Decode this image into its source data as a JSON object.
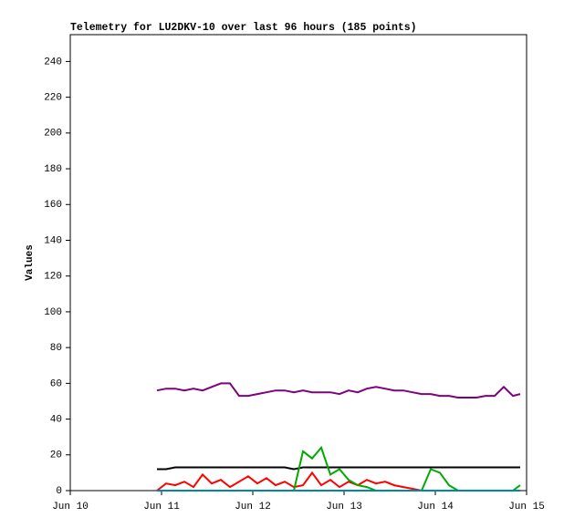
{
  "chart_data": {
    "type": "line",
    "title": "Telemetry for LU2DKV-10 over last 96 hours (185 points)",
    "y_label": "Values",
    "xlim": [
      10,
      15
    ],
    "xticks": [
      {
        "value": 10,
        "label": "Jun 10"
      },
      {
        "value": 11,
        "label": "Jun 11"
      },
      {
        "value": 12,
        "label": "Jun 12"
      },
      {
        "value": 13,
        "label": "Jun 13"
      },
      {
        "value": 14,
        "label": "Jun 14"
      },
      {
        "value": 15,
        "label": "Jun 15"
      }
    ],
    "ylim": [
      0,
      255
    ],
    "yticks": [
      0,
      20,
      40,
      60,
      80,
      100,
      120,
      140,
      160,
      180,
      200,
      220,
      240
    ],
    "x": [
      10.95,
      11.05,
      11.15,
      11.25,
      11.35,
      11.45,
      11.55,
      11.65,
      11.75,
      11.85,
      11.95,
      12.05,
      12.15,
      12.25,
      12.35,
      12.45,
      12.55,
      12.65,
      12.75,
      12.85,
      12.95,
      13.05,
      13.15,
      13.25,
      13.35,
      13.45,
      13.55,
      13.65,
      13.75,
      13.85,
      13.95,
      14.05,
      14.15,
      14.25,
      14.35,
      14.45,
      14.55,
      14.65,
      14.75,
      14.85,
      14.93
    ],
    "series": [
      {
        "color": "#800080",
        "values": [
          56,
          57,
          57,
          56,
          57,
          56,
          58,
          60,
          60,
          53,
          53,
          54,
          55,
          56,
          56,
          55,
          56,
          55,
          55,
          55,
          54,
          56,
          55,
          57,
          58,
          57,
          56,
          56,
          55,
          54,
          54,
          53,
          53,
          52,
          52,
          52,
          53,
          53,
          58,
          53,
          54
        ]
      },
      {
        "color": "#000000",
        "values": [
          12,
          12,
          13,
          13,
          13,
          13,
          13,
          13,
          13,
          13,
          13,
          13,
          13,
          13,
          13,
          12,
          13,
          13,
          13,
          13,
          13,
          13,
          13,
          13,
          13,
          13,
          13,
          13,
          13,
          13,
          13,
          13,
          13,
          13,
          13,
          13,
          13,
          13,
          13,
          13,
          13
        ]
      },
      {
        "color": "#ff0000",
        "values": [
          0,
          4,
          3,
          5,
          2,
          9,
          4,
          6,
          2,
          5,
          8,
          4,
          7,
          3,
          5,
          2,
          3,
          10,
          3,
          6,
          2,
          5,
          3,
          6,
          4,
          5,
          3,
          2,
          1,
          0,
          0,
          0,
          0,
          0,
          0,
          0,
          0,
          0,
          0,
          0,
          0
        ]
      },
      {
        "color": "#00aa00",
        "values": [
          0,
          0,
          0,
          0,
          0,
          0,
          0,
          0,
          0,
          0,
          0,
          0,
          0,
          0,
          0,
          0,
          22,
          18,
          24,
          9,
          12,
          6,
          3,
          2,
          0,
          0,
          0,
          0,
          0,
          0,
          12,
          10,
          3,
          0,
          0,
          0,
          0,
          0,
          0,
          0,
          3
        ]
      },
      {
        "color": "#0088aa",
        "values": [
          0,
          0,
          0,
          0,
          0,
          0,
          0,
          0,
          0,
          0,
          0,
          0,
          0,
          0,
          0,
          0,
          0,
          0,
          0,
          0,
          0,
          0,
          0,
          0,
          0,
          0,
          0,
          0,
          0,
          0,
          0,
          0,
          0,
          0,
          0,
          0,
          0,
          0,
          0,
          0,
          0
        ]
      }
    ]
  }
}
